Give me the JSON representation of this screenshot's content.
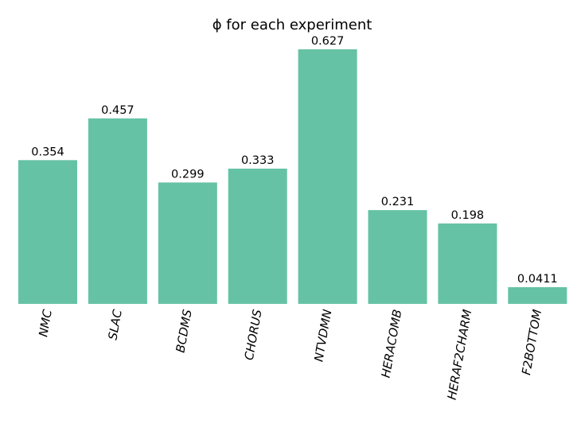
{
  "chart_data": {
    "type": "bar",
    "title": "ϕ for each experiment",
    "categories": [
      "NMC",
      "SLAC",
      "BCDMS",
      "CHORUS",
      "NTVDMN",
      "HERACOMB",
      "HERAF2CHARM",
      "F2BOTTOM"
    ],
    "values": [
      0.354,
      0.457,
      0.299,
      0.333,
      0.627,
      0.231,
      0.198,
      0.0411
    ],
    "value_labels": [
      "0.354",
      "0.457",
      "0.299",
      "0.333",
      "0.627",
      "0.231",
      "0.198",
      "0.0411"
    ],
    "bar_color": "#66c2a5",
    "tick_label_style": "italic",
    "tick_label_rotation_deg": -80,
    "ylim": [
      0,
      0.627
    ],
    "xlabel": "",
    "ylabel": "",
    "grid": false,
    "axes_visible": false
  }
}
